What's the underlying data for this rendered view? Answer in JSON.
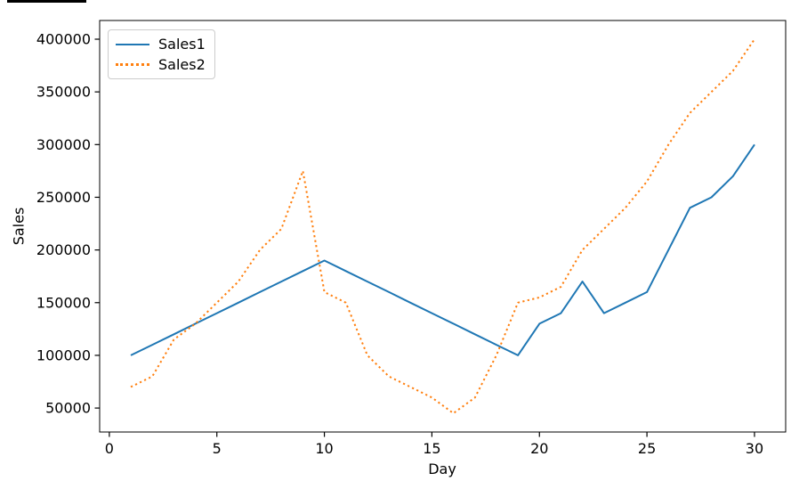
{
  "chart_data": {
    "type": "line",
    "title": "",
    "xlabel": "Day",
    "ylabel": "Sales",
    "x": [
      1,
      2,
      3,
      4,
      5,
      6,
      7,
      8,
      9,
      10,
      11,
      12,
      13,
      14,
      15,
      16,
      17,
      18,
      19,
      20,
      21,
      22,
      23,
      24,
      25,
      26,
      27,
      28,
      29,
      30
    ],
    "series": [
      {
        "name": "Sales1",
        "color": "#1f77b4",
        "linestyle": "solid",
        "values": [
          100000,
          110000,
          120000,
          130000,
          140000,
          150000,
          160000,
          170000,
          180000,
          190000,
          180000,
          170000,
          160000,
          150000,
          140000,
          130000,
          120000,
          110000,
          100000,
          130000,
          140000,
          170000,
          140000,
          150000,
          160000,
          200000,
          240000,
          250000,
          270000,
          300000
        ]
      },
      {
        "name": "Sales2",
        "color": "#ff7f0e",
        "linestyle": "dotted",
        "values": [
          70000,
          80000,
          115000,
          130000,
          150000,
          170000,
          200000,
          220000,
          275000,
          160000,
          150000,
          100000,
          80000,
          70000,
          60000,
          45000,
          60000,
          100000,
          150000,
          155000,
          165000,
          200000,
          220000,
          240000,
          265000,
          300000,
          330000,
          350000,
          370000,
          400000
        ]
      }
    ],
    "xlim": [
      -0.45,
      31.45
    ],
    "ylim": [
      27250,
      417750
    ],
    "xticks": [
      0,
      5,
      10,
      15,
      20,
      25,
      30
    ],
    "yticks": [
      50000,
      100000,
      150000,
      200000,
      250000,
      300000,
      350000,
      400000
    ],
    "grid": false,
    "legend_position": "upper-left"
  },
  "colors": {
    "axis": "#000000",
    "tick_text": "#000000",
    "background": "#ffffff",
    "legend_border": "#cccccc"
  }
}
